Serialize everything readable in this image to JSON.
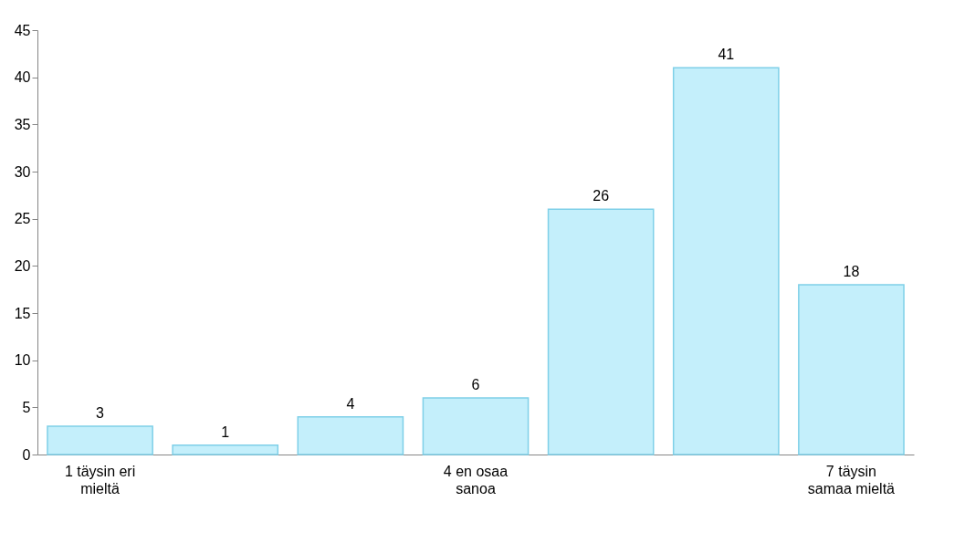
{
  "chart_data": {
    "type": "bar",
    "categories": [
      "1 täysin eri mieltä",
      null,
      null,
      "4 en osaa sanoa",
      null,
      null,
      "7 täysin samaa mieltä"
    ],
    "values": [
      3,
      1,
      4,
      6,
      26,
      41,
      18
    ],
    "color": "#c4effb",
    "ylim": [
      0,
      45
    ],
    "yticks": [
      0,
      5,
      10,
      15,
      20,
      25,
      30,
      35,
      40,
      45
    ],
    "grid": false,
    "data_labels": true
  }
}
